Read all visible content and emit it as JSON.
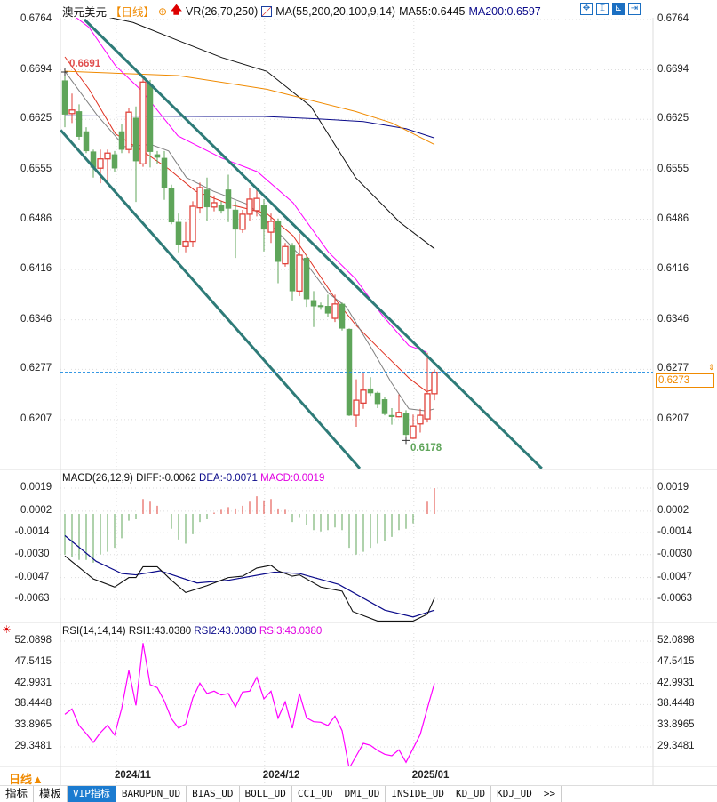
{
  "header": {
    "symbol": "澳元美元",
    "period": "【日线】",
    "vr": "VR(26,70,250)",
    "ma_params": "MA(55,200,20,100,9,14)",
    "ma55": "MA55:0.6445",
    "ma200": "MA200:0.6597"
  },
  "colors": {
    "up": "#e0413a",
    "down": "#5fa55a",
    "ma55": "#111111",
    "ma200": "#0a0a8a",
    "ma_orange": "#f08a00",
    "ma_magenta": "#ff00ff",
    "ma_red": "#e03020",
    "ma_gray": "#808080",
    "channel": "#2e7b78",
    "accent": "#1b7bd0"
  },
  "price_axis": {
    "ticks": [
      "0.6764",
      "0.6694",
      "0.6625",
      "0.6555",
      "0.6486",
      "0.6416",
      "0.6346",
      "0.6277",
      "0.6207"
    ],
    "current": "0.6273",
    "high_label": "0.6691",
    "low_label": "0.6178"
  },
  "chart_data": [
    {
      "type": "candlestick",
      "ylim": [
        0.6139,
        0.6776
      ],
      "ohlc": [
        [
          0.6679,
          0.6691,
          0.6614,
          0.6632
        ],
        [
          0.6633,
          0.6661,
          0.662,
          0.6638
        ],
        [
          0.6636,
          0.6646,
          0.6596,
          0.6601
        ],
        [
          0.6608,
          0.6614,
          0.6578,
          0.6581
        ],
        [
          0.658,
          0.6583,
          0.6544,
          0.6558
        ],
        [
          0.6557,
          0.6583,
          0.6536,
          0.657
        ],
        [
          0.657,
          0.6583,
          0.654,
          0.6578
        ],
        [
          0.6576,
          0.6581,
          0.6552,
          0.6557
        ],
        [
          0.6608,
          0.6618,
          0.6578,
          0.6583
        ],
        [
          0.6583,
          0.6641,
          0.6578,
          0.6635
        ],
        [
          0.6627,
          0.6643,
          0.651,
          0.6567
        ],
        [
          0.6563,
          0.6686,
          0.6559,
          0.6677
        ],
        [
          0.6674,
          0.668,
          0.6558,
          0.658
        ],
        [
          0.6576,
          0.6581,
          0.6563,
          0.6572
        ],
        [
          0.6571,
          0.6581,
          0.6513,
          0.653
        ],
        [
          0.6529,
          0.6534,
          0.6479,
          0.6482
        ],
        [
          0.6482,
          0.6494,
          0.644,
          0.6451
        ],
        [
          0.6448,
          0.6482,
          0.644,
          0.6455
        ],
        [
          0.6455,
          0.6511,
          0.6447,
          0.6504
        ],
        [
          0.6502,
          0.6537,
          0.6494,
          0.653
        ],
        [
          0.6527,
          0.6544,
          0.6484,
          0.6503
        ],
        [
          0.6503,
          0.6519,
          0.6497,
          0.6509
        ],
        [
          0.6505,
          0.6511,
          0.6494,
          0.6498
        ],
        [
          0.6527,
          0.6548,
          0.6482,
          0.6501
        ],
        [
          0.6499,
          0.6511,
          0.6432,
          0.6472
        ],
        [
          0.6472,
          0.6499,
          0.6467,
          0.6493
        ],
        [
          0.6493,
          0.6529,
          0.6484,
          0.6514
        ],
        [
          0.6498,
          0.6528,
          0.649,
          0.6515
        ],
        [
          0.6505,
          0.6514,
          0.6441,
          0.6472
        ],
        [
          0.6468,
          0.6494,
          0.6453,
          0.6483
        ],
        [
          0.6483,
          0.6487,
          0.6397,
          0.6427
        ],
        [
          0.6424,
          0.6453,
          0.642,
          0.6448
        ],
        [
          0.6449,
          0.6453,
          0.6373,
          0.6386
        ],
        [
          0.6386,
          0.6466,
          0.6379,
          0.6436
        ],
        [
          0.6432,
          0.6436,
          0.6364,
          0.6375
        ],
        [
          0.6373,
          0.6386,
          0.6336,
          0.6365
        ],
        [
          0.6366,
          0.637,
          0.636,
          0.6364
        ],
        [
          0.6365,
          0.6381,
          0.635,
          0.6355
        ],
        [
          0.6348,
          0.6381,
          0.6343,
          0.6368
        ],
        [
          0.6368,
          0.637,
          0.6331,
          0.6334
        ],
        [
          0.6333,
          0.6334,
          0.6212,
          0.6213
        ],
        [
          0.6213,
          0.6263,
          0.6197,
          0.6234
        ],
        [
          0.623,
          0.6273,
          0.6222,
          0.6248
        ],
        [
          0.625,
          0.6266,
          0.624,
          0.6244
        ],
        [
          0.6244,
          0.6246,
          0.6223,
          0.6229
        ],
        [
          0.6235,
          0.6238,
          0.6213,
          0.6215
        ],
        [
          0.6213,
          0.6223,
          0.62,
          0.6211
        ],
        [
          0.6211,
          0.6242,
          0.621,
          0.6217
        ],
        [
          0.6216,
          0.622,
          0.6178,
          0.6186
        ],
        [
          0.6181,
          0.6214,
          0.618,
          0.6198
        ],
        [
          0.6201,
          0.6222,
          0.6189,
          0.6213
        ],
        [
          0.6208,
          0.63,
          0.6203,
          0.6243
        ],
        [
          0.6243,
          0.6277,
          0.6234,
          0.6273
        ]
      ],
      "ma_lines": [
        {
          "key": "ma55",
          "points": [
            [
              0,
              0.6773
            ],
            [
              3.4,
              0.6773
            ],
            [
              9.6,
              0.676
            ],
            [
              15.9,
              0.6735
            ],
            [
              22.1,
              0.6711
            ],
            [
              28.4,
              0.6692
            ],
            [
              34.6,
              0.6643
            ],
            [
              40.9,
              0.6544
            ],
            [
              47.1,
              0.6482
            ],
            [
              52,
              0.6445
            ]
          ]
        },
        {
          "key": "ma200",
          "points": [
            [
              0,
              0.663
            ],
            [
              20,
              0.6629
            ],
            [
              28,
              0.6629
            ],
            [
              35,
              0.6626
            ],
            [
              42,
              0.6622
            ],
            [
              48,
              0.6612
            ],
            [
              52,
              0.6599
            ]
          ]
        },
        {
          "key": "ma_orange",
          "points": [
            [
              0,
              0.6692
            ],
            [
              15.9,
              0.6686
            ],
            [
              28.4,
              0.6667
            ],
            [
              40.9,
              0.6636
            ],
            [
              46,
              0.662
            ],
            [
              52,
              0.659
            ]
          ]
        },
        {
          "key": "ma_magenta",
          "points": [
            [
              0,
              0.6779
            ],
            [
              3.4,
              0.6753
            ],
            [
              7.1,
              0.67
            ],
            [
              10.9,
              0.6664
            ],
            [
              15.9,
              0.6602
            ],
            [
              22.1,
              0.6571
            ],
            [
              27.1,
              0.6552
            ],
            [
              32.1,
              0.6509
            ],
            [
              37.1,
              0.644
            ],
            [
              40.9,
              0.6403
            ],
            [
              44.6,
              0.6353
            ],
            [
              48.4,
              0.631
            ],
            [
              50.9,
              0.6301
            ]
          ]
        },
        {
          "key": "ma_red",
          "points": [
            [
              0,
              0.6712
            ],
            [
              3.4,
              0.6667
            ],
            [
              7.1,
              0.6605
            ],
            [
              10.9,
              0.6581
            ],
            [
              14.6,
              0.6556
            ],
            [
              18.4,
              0.6525
            ],
            [
              23.4,
              0.6506
            ],
            [
              28.4,
              0.6494
            ],
            [
              32.1,
              0.6463
            ],
            [
              35.9,
              0.6407
            ],
            [
              38.4,
              0.637
            ],
            [
              40.9,
              0.6339
            ],
            [
              44.6,
              0.6302
            ],
            [
              48.4,
              0.6265
            ],
            [
              50.9,
              0.6246
            ],
            [
              52,
              0.6249
            ]
          ]
        },
        {
          "key": "ma_gray",
          "points": [
            [
              0,
              0.6692
            ],
            [
              4.6,
              0.663
            ],
            [
              8.4,
              0.6587
            ],
            [
              12.1,
              0.659
            ],
            [
              14.6,
              0.6581
            ],
            [
              17.1,
              0.6544
            ],
            [
              20.9,
              0.6525
            ],
            [
              25.9,
              0.6506
            ],
            [
              29.6,
              0.6472
            ],
            [
              33.4,
              0.6432
            ],
            [
              37.1,
              0.6383
            ],
            [
              39.6,
              0.6364
            ],
            [
              43.4,
              0.6302
            ],
            [
              45.9,
              0.6259
            ],
            [
              48.4,
              0.6222
            ],
            [
              50.9,
              0.6219
            ],
            [
              52,
              0.6222
            ]
          ]
        }
      ],
      "channel": [
        {
          "from": [
            2.75,
            0.6764
          ],
          "to": [
            67.1,
            0.6139
          ]
        },
        {
          "from": [
            -0.6,
            0.661
          ],
          "to": [
            41.5,
            0.6139
          ]
        }
      ]
    },
    {
      "type": "macd",
      "title": "MACD(26,12,9)",
      "diff_label": "DIFF:-0.0062",
      "dea_label": "DEA:-0.0071",
      "macd_label": "MACD:0.0019",
      "ticks": [
        "0.0019",
        "0.0002",
        "-0.0014",
        "-0.0030",
        "-0.0047",
        "-0.0063"
      ],
      "histogram": [
        -0.003,
        -0.0032,
        -0.0034,
        -0.0034,
        -0.0036,
        -0.003,
        -0.0028,
        -0.0025,
        -0.0018,
        -0.0005,
        -0.0004,
        0.0011,
        0.0009,
        0.0006,
        0.0,
        -0.0011,
        -0.0019,
        -0.0022,
        -0.0015,
        -0.0006,
        -0.0004,
        0.0001,
        0.0003,
        0.0005,
        0.0004,
        0.0006,
        0.0009,
        0.0013,
        0.001,
        0.0011,
        0.0004,
        0.0003,
        -0.0006,
        -0.0003,
        -0.0008,
        -0.0012,
        -0.0013,
        -0.0012,
        -0.001,
        -0.0012,
        -0.0025,
        -0.003,
        -0.0028,
        -0.0025,
        -0.0022,
        -0.002,
        -0.0017,
        -0.0012,
        -0.0011,
        -0.0007,
        0.0,
        0.0009,
        0.0019
      ],
      "diff": [
        [
          0,
          -0.0031
        ],
        [
          4,
          -0.0048
        ],
        [
          7,
          -0.0054
        ],
        [
          9,
          -0.0047
        ],
        [
          10,
          -0.0047
        ],
        [
          11,
          -0.0039
        ],
        [
          13,
          -0.0039
        ],
        [
          15,
          -0.0049
        ],
        [
          17,
          -0.0058
        ],
        [
          20,
          -0.0053
        ],
        [
          23,
          -0.0047
        ],
        [
          25,
          -0.0046
        ],
        [
          27,
          -0.004
        ],
        [
          29,
          -0.0038
        ],
        [
          30,
          -0.0042
        ],
        [
          32,
          -0.0046
        ],
        [
          33,
          -0.0045
        ],
        [
          36,
          -0.0054
        ],
        [
          39,
          -0.0057
        ],
        [
          40.5,
          -0.0072
        ],
        [
          44,
          -0.0079
        ],
        [
          49,
          -0.0079
        ],
        [
          51,
          -0.0074
        ],
        [
          52,
          -0.0062
        ]
      ],
      "dea": [
        [
          0,
          -0.0016
        ],
        [
          4.4,
          -0.0035
        ],
        [
          8,
          -0.0044
        ],
        [
          10,
          -0.0045
        ],
        [
          13.4,
          -0.0042
        ],
        [
          18.6,
          -0.0051
        ],
        [
          23,
          -0.0049
        ],
        [
          29.5,
          -0.0043
        ],
        [
          33,
          -0.0044
        ],
        [
          38.5,
          -0.0052
        ],
        [
          45,
          -0.0071
        ],
        [
          49,
          -0.0076
        ],
        [
          52,
          -0.0071
        ]
      ]
    },
    {
      "type": "line",
      "title": "RSI(14,14,14)",
      "rsi1_label": "RSI1:43.0380",
      "rsi2_label": "RSI2:43.0380",
      "rsi3_label": "RSI3:43.0380",
      "ticks": [
        "52.0898",
        "47.5415",
        "42.9931",
        "38.4448",
        "33.8965",
        "29.3481"
      ],
      "values": [
        36.35,
        37.5,
        33.94,
        32.22,
        30.3,
        32.41,
        34.0,
        31.9,
        37.63,
        45.78,
        38.27,
        51.64,
        42.73,
        42.09,
        39.22,
        35.4,
        33.36,
        34.32,
        39.86,
        43.04,
        40.82,
        41.33,
        40.5,
        40.82,
        37.95,
        41.13,
        41.33,
        44.32,
        39.67,
        41.33,
        35.53,
        39.03,
        33.36,
        40.82,
        35.59,
        34.76,
        34.64,
        33.94,
        35.97,
        32.85,
        24.76,
        27.44,
        30.11,
        29.67,
        28.58,
        27.76,
        27.44,
        28.71,
        26.04,
        29.03,
        32.03,
        37.63,
        43.04
      ]
    }
  ],
  "x_axis": {
    "period_label": "日线▲",
    "ticks": [
      {
        "label": "2024/11",
        "bar": 7.25
      },
      {
        "label": "2024/12",
        "bar": 28.1
      },
      {
        "label": "2025/01",
        "bar": 49.1
      }
    ]
  },
  "tabs": [
    {
      "label": "指标"
    },
    {
      "label": "模板"
    },
    {
      "label": "VIP指标",
      "active": true
    },
    {
      "label": "BARUPDN_UD"
    },
    {
      "label": "BIAS_UD"
    },
    {
      "label": "BOLL_UD"
    },
    {
      "label": "CCI_UD"
    },
    {
      "label": "DMI_UD"
    },
    {
      "label": "INSIDE_UD"
    },
    {
      "label": "KD_UD"
    },
    {
      "label": "KDJ_UD"
    },
    {
      "label": ">>"
    }
  ]
}
